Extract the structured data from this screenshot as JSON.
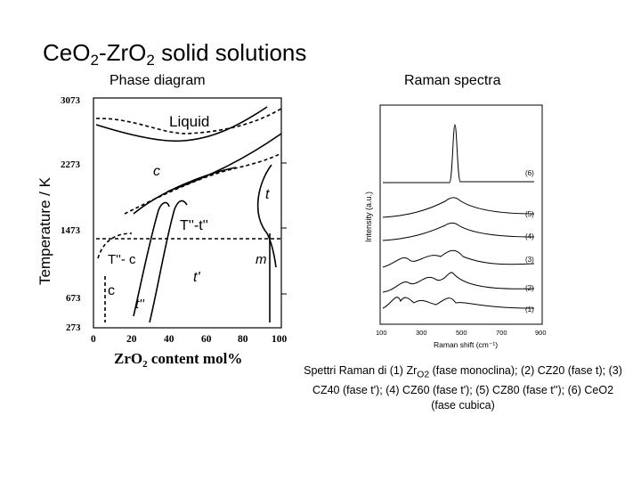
{
  "title": {
    "parts": [
      "Ce",
      "O",
      "2",
      "-Zr",
      "O",
      "2",
      " solid solutions"
    ]
  },
  "phase_diagram": {
    "heading": "Phase diagram",
    "ylabel": "Temperature / K",
    "xlabel_part1": "ZrO",
    "xlabel_sub": "2",
    "xlabel_part2": " content mol%",
    "yticks": [
      "3073",
      "2273",
      "1473",
      "673",
      "273"
    ],
    "xticks": [
      "0",
      "20",
      "40",
      "60",
      "80",
      "100"
    ],
    "regions": {
      "liquid": "Liquid",
      "c_top": "c",
      "t": "t",
      "tpp_tp": "T''-t''",
      "tpp_c": "T''- c",
      "m": "m",
      "tprime": "t'",
      "c_bottom": "c",
      "tpp": "t''"
    }
  },
  "raman": {
    "heading": "Raman spectra",
    "ylabel": "Intensity (a.u.)",
    "xlabel": "Raman shift (cm⁻¹)",
    "xticks": [
      "100",
      "300",
      "500",
      "700",
      "900"
    ],
    "spectrum_labels": [
      "(6)",
      "(5)",
      "(4)",
      "(3)",
      "(2)",
      "(1)"
    ]
  },
  "caption": {
    "p1": "Spettri Raman di (1) Zr",
    "p1sub": "O2",
    "p2": " (fase monoclina); (2) CZ20 (fase t); (3) CZ40 (fase t'); (4) CZ60 (fase t'); (5) CZ80 (fase t''); (6) CeO2 (fase cubica)"
  }
}
